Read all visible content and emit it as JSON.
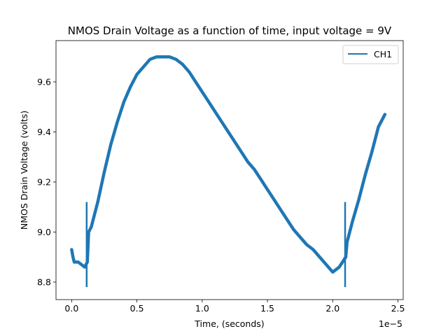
{
  "chart_data": {
    "type": "line",
    "title": "NMOS Drain Voltage as a function of time, input voltage = 9V",
    "xlabel": "Time, (seconds)",
    "ylabel": "NMOS Drain Voltage (volts)",
    "x_scale_label": "1e−5",
    "x_multiplier": 1e-05,
    "xlim": [
      -0.12,
      2.54
    ],
    "ylim": [
      8.73,
      9.765
    ],
    "x_ticks": [
      0.0,
      0.5,
      1.0,
      1.5,
      2.0,
      2.5
    ],
    "x_tick_labels": [
      "0.0",
      "0.5",
      "1.0",
      "1.5",
      "2.0",
      "2.5"
    ],
    "y_ticks": [
      8.8,
      9.0,
      9.2,
      9.4,
      9.6
    ],
    "y_tick_labels": [
      "8.8",
      "9.0",
      "9.2",
      "9.4",
      "9.6"
    ],
    "grid": false,
    "legend_position": "top-right",
    "series": [
      {
        "name": "CH1",
        "color": "#1f77b4",
        "x": [
          0.0,
          0.01,
          0.02,
          0.05,
          0.1,
          0.12,
          0.13,
          0.15,
          0.2,
          0.25,
          0.3,
          0.35,
          0.4,
          0.45,
          0.5,
          0.55,
          0.6,
          0.65,
          0.7,
          0.75,
          0.8,
          0.85,
          0.9,
          0.95,
          1.0,
          1.05,
          1.1,
          1.15,
          1.2,
          1.25,
          1.3,
          1.35,
          1.4,
          1.45,
          1.5,
          1.55,
          1.6,
          1.65,
          1.7,
          1.75,
          1.8,
          1.85,
          1.9,
          1.95,
          2.0,
          2.05,
          2.1,
          2.11,
          2.13,
          2.15,
          2.2,
          2.25,
          2.3,
          2.35,
          2.4
        ],
        "values": [
          8.93,
          8.9,
          8.88,
          8.88,
          8.86,
          8.88,
          9.0,
          9.02,
          9.12,
          9.24,
          9.35,
          9.44,
          9.52,
          9.58,
          9.63,
          9.66,
          9.69,
          9.7,
          9.7,
          9.7,
          9.69,
          9.67,
          9.64,
          9.6,
          9.56,
          9.52,
          9.48,
          9.44,
          9.4,
          9.36,
          9.32,
          9.28,
          9.25,
          9.21,
          9.17,
          9.13,
          9.09,
          9.05,
          9.01,
          8.98,
          8.95,
          8.93,
          8.9,
          8.87,
          8.84,
          8.86,
          8.9,
          8.96,
          9.0,
          9.04,
          9.13,
          9.23,
          9.32,
          9.42,
          9.47
        ],
        "spikes": [
          {
            "x": 0.115,
            "min": 8.78,
            "max": 9.12
          },
          {
            "x": 2.095,
            "min": 8.78,
            "max": 9.12
          }
        ]
      }
    ]
  }
}
